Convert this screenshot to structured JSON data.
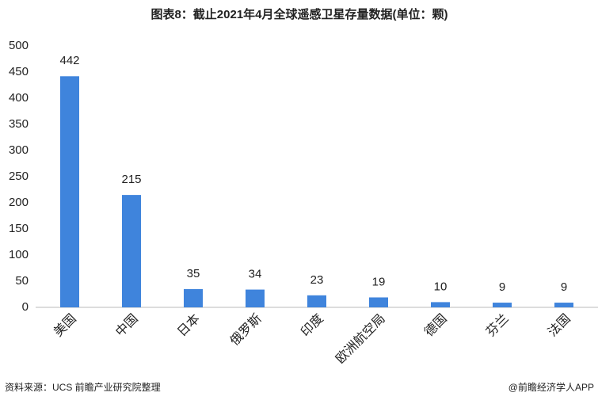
{
  "chart_data": {
    "type": "bar",
    "title": "图表8：截止2021年4月全球遥感卫星存量数据(单位：颗)",
    "categories": [
      "美国",
      "中国",
      "日本",
      "俄罗斯",
      "印度",
      "欧洲航空局",
      "德国",
      "芬兰",
      "法国"
    ],
    "values": [
      442,
      215,
      35,
      34,
      23,
      19,
      10,
      9,
      9
    ],
    "color": "#3f84dc",
    "ylim": [
      0,
      500
    ],
    "yticks": [
      0,
      50,
      100,
      150,
      200,
      250,
      300,
      350,
      400,
      450,
      500
    ],
    "grid": false
  },
  "footer": {
    "source": "资料来源：UCS 前瞻产业研究院整理",
    "credit": "@前瞻经济学人APP"
  }
}
